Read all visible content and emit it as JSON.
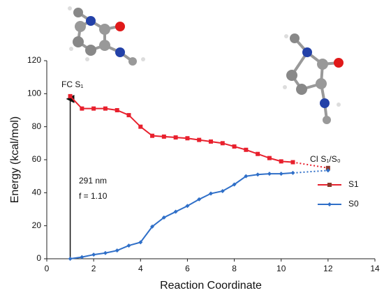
{
  "chart_data": {
    "type": "line",
    "xlabel": "Reaction Coordinate",
    "ylabel": "Energy (kcal/mol)",
    "x": [
      1,
      1.5,
      2,
      2.5,
      3,
      3.5,
      4,
      4.5,
      5,
      5.5,
      6,
      6.5,
      7,
      7.5,
      8,
      8.5,
      9,
      9.5,
      10,
      10.5,
      12
    ],
    "series": [
      {
        "name": "S1",
        "color": "#e8202d",
        "marker_color": "#8a3a2c",
        "values": [
          98.5,
          91,
          91,
          91,
          90,
          87,
          80,
          74.5,
          74,
          73.5,
          73,
          72,
          71,
          70,
          68,
          66,
          63.5,
          61,
          59,
          58.5,
          55
        ]
      },
      {
        "name": "S0",
        "color": "#2f6fc8",
        "marker_color": "#2f6fc8",
        "values": [
          0,
          1,
          2.5,
          3.5,
          5,
          8,
          10,
          19.5,
          25,
          28.5,
          32,
          36,
          39.5,
          41,
          45,
          50,
          51,
          51.5,
          51.5,
          52,
          53.5
        ]
      }
    ],
    "xlim": [
      0,
      14
    ],
    "xticks": [
      0,
      2,
      4,
      6,
      8,
      10,
      12,
      14
    ],
    "ylim": [
      0,
      120
    ],
    "yticks": [
      0,
      20,
      40,
      60,
      80,
      100,
      120
    ],
    "grid": false,
    "legend": "right",
    "annotations": {
      "fc": "FC S₁",
      "ci": "CI S₁/S₀",
      "wavelength": "291 nm",
      "oscillator": "f = 1.10"
    }
  }
}
